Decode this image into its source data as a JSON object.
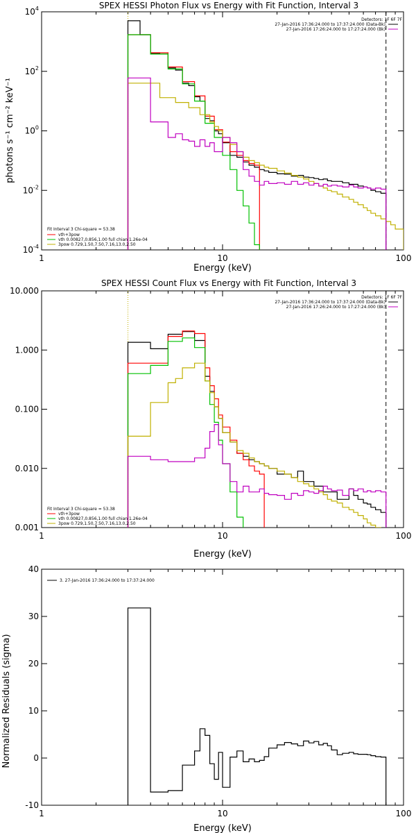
{
  "chart_data": [
    {
      "type": "line",
      "title": "SPEX HESSI Photon Flux vs Energy with Fit Function, Interval 3",
      "xlabel": "Energy (keV)",
      "ylabel": "photons s⁻¹ cm⁻² keV⁻¹",
      "xscale": "log",
      "yscale": "log",
      "xlim": [
        1,
        100
      ],
      "ylim": [
        0.0001,
        10000
      ],
      "xticks": [
        "1",
        "10",
        "100"
      ],
      "yticks": [
        {
          "base": "10",
          "exp": "-4",
          "v": 0.0001
        },
        {
          "base": "10",
          "exp": "-2",
          "v": 0.01
        },
        {
          "base": "10",
          "exp": "0",
          "v": 1
        },
        {
          "base": "10",
          "exp": "2",
          "v": 100
        },
        {
          "base": "10",
          "exp": "4",
          "v": 10000
        }
      ],
      "legend_right": {
        "header": "Detectors: 1F 6F 7F",
        "entries": [
          {
            "label": "27-Jan-2016 17:36:24.000 to 17:37:24.000 (Data-Bk)",
            "color": "#000000"
          },
          {
            "label": "27-Jan-2016 17:26:24.000 to 17:27:24.000 (Bk)",
            "color": "#c000c0"
          }
        ]
      },
      "legend_left": {
        "header": "Fit Interval 3   Chi-square = 53.38",
        "entries": [
          {
            "label": "vth+3pow",
            "color": "#ff0000"
          },
          {
            "label": "vth 0.00827,0.856,1.00  full chian 1.26e-04",
            "color": "#00c000"
          },
          {
            "label": "3pow 0.729,1.50,7.50,7.16,13.0,2.50",
            "color": "#c0b000"
          }
        ]
      },
      "vlines": [
        {
          "x": 3.0,
          "style": "dotted",
          "color": "#c0b000"
        },
        {
          "x": 80,
          "style": "dashed",
          "color": "#000000"
        }
      ],
      "series": [
        {
          "color": "#000000",
          "bins": [
            3.0,
            3.5,
            4.0,
            4.5,
            5.0,
            5.5,
            6.0,
            6.5,
            7.0,
            7.5,
            8.0,
            8.5,
            9.0,
            9.5,
            10,
            11,
            12,
            13,
            14,
            15,
            16,
            17,
            18,
            20,
            22,
            24,
            26,
            28,
            30,
            32,
            34,
            36,
            38,
            40,
            43,
            46,
            50,
            53,
            56,
            60,
            63,
            66,
            70,
            75,
            80
          ],
          "values": [
            5000,
            1700,
            400,
            380,
            130,
            110,
            40,
            33,
            14,
            10,
            2.6,
            2.2,
            1.0,
            0.8,
            0.4,
            0.15,
            0.13,
            0.09,
            0.07,
            0.06,
            0.05,
            0.045,
            0.04,
            0.036,
            0.035,
            0.03,
            0.032,
            0.028,
            0.027,
            0.025,
            0.023,
            0.024,
            0.021,
            0.02,
            0.02,
            0.018,
            0.016,
            0.016,
            0.014,
            0.013,
            0.012,
            0.01,
            0.009,
            0.008
          ]
        },
        {
          "color": "#ff0000",
          "bins": [
            3.0,
            3.5,
            4.0,
            4.5,
            5.0,
            5.5,
            6.0,
            6.5,
            7.0,
            7.5,
            8.0,
            8.5,
            9.0,
            9.5,
            10,
            11,
            12,
            13,
            14,
            15,
            16
          ],
          "values": [
            1700,
            1700,
            420,
            420,
            140,
            140,
            45,
            45,
            15,
            15,
            3.1,
            3.1,
            1.1,
            1.1,
            0.42,
            0.2,
            0.15,
            0.1,
            0.08,
            0.07
          ]
        },
        {
          "color": "#00c000",
          "bins": [
            3.0,
            3.5,
            4.0,
            4.5,
            5.0,
            5.5,
            6.0,
            6.5,
            7.0,
            7.5,
            8.0,
            8.5,
            9.0,
            9.5,
            10,
            11,
            12,
            13,
            14,
            15,
            16
          ],
          "values": [
            1700,
            1700,
            380,
            380,
            120,
            120,
            38,
            38,
            10,
            10,
            1.8,
            1.8,
            0.6,
            0.6,
            0.15,
            0.05,
            0.01,
            0.003,
            0.0008,
            0.00015
          ]
        },
        {
          "color": "#c0b000",
          "bins": [
            3.0,
            3.5,
            4.0,
            4.5,
            5.0,
            5.5,
            6.0,
            6.5,
            7.0,
            7.5,
            8.0,
            8.5,
            9.0,
            9.5,
            10,
            11,
            12,
            13,
            14,
            15,
            16,
            17,
            18,
            20,
            22,
            24,
            26,
            28,
            30,
            32,
            34,
            36,
            38,
            40,
            43,
            46,
            50,
            53,
            56,
            60,
            63,
            66,
            70,
            75,
            80,
            85,
            90,
            100
          ],
          "values": [
            40,
            40,
            40,
            13,
            13,
            9,
            9,
            6,
            6,
            3.5,
            3.5,
            2,
            1.4,
            1.0,
            0.6,
            0.35,
            0.2,
            0.13,
            0.1,
            0.085,
            0.07,
            0.06,
            0.055,
            0.045,
            0.038,
            0.032,
            0.028,
            0.024,
            0.02,
            0.017,
            0.014,
            0.012,
            0.01,
            0.009,
            0.0075,
            0.006,
            0.005,
            0.004,
            0.0033,
            0.0026,
            0.0021,
            0.0017,
            0.0014,
            0.0011,
            0.0009,
            0.0007,
            0.0005
          ]
        },
        {
          "color": "#c000c0",
          "bins": [
            3.0,
            3.5,
            4.0,
            4.5,
            5.0,
            5.5,
            6.0,
            6.5,
            7.0,
            7.5,
            8.0,
            8.5,
            9.0,
            9.5,
            10,
            11,
            12,
            13,
            14,
            15,
            16,
            17,
            18,
            20,
            22,
            24,
            26,
            28,
            30,
            32,
            34,
            36,
            38,
            40,
            43,
            46,
            50,
            53,
            56,
            60,
            63,
            66,
            70,
            75,
            80
          ],
          "values": [
            60,
            60,
            2,
            2,
            0.6,
            0.8,
            0.5,
            0.45,
            0.3,
            0.5,
            0.3,
            0.4,
            0.2,
            0.2,
            0.6,
            0.4,
            0.2,
            0.05,
            0.03,
            0.02,
            0.015,
            0.02,
            0.017,
            0.018,
            0.016,
            0.02,
            0.016,
            0.018,
            0.015,
            0.017,
            0.014,
            0.016,
            0.014,
            0.015,
            0.014,
            0.013,
            0.015,
            0.013,
            0.012,
            0.013,
            0.012,
            0.011,
            0.012,
            0.011
          ]
        }
      ]
    },
    {
      "type": "line",
      "title": "SPEX HESSI Count Flux vs Energy with Fit Function, Interval 3",
      "xlabel": "Energy (keV)",
      "ylabel": "",
      "xscale": "log",
      "yscale": "log",
      "xlim": [
        1,
        100
      ],
      "ylim": [
        0.001,
        10
      ],
      "xticks": [
        "1",
        "10",
        "100"
      ],
      "yticks": [
        {
          "base": "0.001",
          "v": 0.001
        },
        {
          "base": "0.010",
          "v": 0.01
        },
        {
          "base": "0.100",
          "v": 0.1
        },
        {
          "base": "1.000",
          "v": 1
        },
        {
          "base": "10.000",
          "v": 10
        }
      ],
      "legend_right": {
        "header": "Detectors: 1F 6F 7F",
        "entries": [
          {
            "label": "27-Jan-2016 17:36:24.000 to 17:37:24.000 (Data-Bk)",
            "color": "#000000"
          },
          {
            "label": "27-Jan-2016 17:26:24.000 to 17:27:24.000 (Bk)",
            "color": "#c000c0"
          }
        ]
      },
      "legend_left": {
        "header": "Fit Interval 3   Chi-square = 53.38",
        "entries": [
          {
            "label": "vth+3pow",
            "color": "#ff0000"
          },
          {
            "label": "vth 0.00827,0.856,1.00  full chian 1.26e-04",
            "color": "#00c000"
          },
          {
            "label": "3pow 0.729,1.50,7.50,7.16,13.0,2.50",
            "color": "#c0b000"
          }
        ]
      },
      "vlines": [
        {
          "x": 3.0,
          "style": "dotted",
          "color": "#c0b000"
        },
        {
          "x": 80,
          "style": "dashed",
          "color": "#000000"
        }
      ],
      "series": [
        {
          "color": "#000000",
          "bins": [
            3.0,
            4.0,
            5.0,
            6.0,
            7.0,
            8.0,
            8.5,
            9.0,
            9.5,
            10,
            11,
            12,
            13,
            14,
            15,
            16,
            17,
            18,
            20,
            22,
            24,
            26,
            28,
            30,
            32,
            34,
            36,
            38,
            40,
            43,
            46,
            50,
            53,
            56,
            60,
            63,
            66,
            70,
            75,
            80
          ],
          "values": [
            1.35,
            1.05,
            1.85,
            2.05,
            1.45,
            0.36,
            0.2,
            0.11,
            0.07,
            0.04,
            0.028,
            0.018,
            0.016,
            0.014,
            0.013,
            0.012,
            0.011,
            0.01,
            0.008,
            0.008,
            0.007,
            0.009,
            0.006,
            0.006,
            0.005,
            0.005,
            0.004,
            0.004,
            0.004,
            0.003,
            0.003,
            0.0045,
            0.0035,
            0.003,
            0.0026,
            0.0025,
            0.0022,
            0.002,
            0.0018
          ]
        },
        {
          "color": "#ff0000",
          "bins": [
            3.0,
            4.0,
            5.0,
            6.0,
            7.0,
            8.0,
            8.5,
            9.0,
            9.5,
            10,
            11,
            12,
            13,
            14,
            15,
            16,
            17
          ],
          "values": [
            0.6,
            0.6,
            1.7,
            2.1,
            1.9,
            0.5,
            0.25,
            0.15,
            0.08,
            0.05,
            0.03,
            0.018,
            0.014,
            0.011,
            0.009,
            0.008
          ]
        },
        {
          "color": "#00c000",
          "bins": [
            3.0,
            4.0,
            5.0,
            6.0,
            7.0,
            8.0,
            8.5,
            9.0,
            9.5,
            10,
            11,
            12,
            13,
            14
          ],
          "values": [
            0.4,
            0.55,
            1.4,
            1.6,
            1.1,
            0.3,
            0.12,
            0.06,
            0.03,
            0.012,
            0.004,
            0.0015,
            0.0009
          ]
        },
        {
          "color": "#c0b000",
          "bins": [
            3.0,
            4.0,
            5.0,
            5.5,
            6.0,
            7.0,
            8.0,
            8.5,
            9.0,
            9.5,
            10,
            11,
            12,
            13,
            14,
            15,
            16,
            17,
            18,
            20,
            22,
            24,
            26,
            28,
            30,
            32,
            34,
            36,
            38,
            40,
            43,
            46,
            50,
            53,
            56,
            60,
            63,
            66,
            70,
            75,
            80
          ],
          "values": [
            0.035,
            0.13,
            0.28,
            0.33,
            0.5,
            0.6,
            0.3,
            0.19,
            0.11,
            0.07,
            0.04,
            0.028,
            0.02,
            0.018,
            0.015,
            0.013,
            0.012,
            0.011,
            0.01,
            0.009,
            0.008,
            0.007,
            0.006,
            0.0055,
            0.005,
            0.0045,
            0.004,
            0.0036,
            0.003,
            0.0028,
            0.0026,
            0.0022,
            0.002,
            0.0018,
            0.0016,
            0.0014,
            0.0012,
            0.0011,
            0.001,
            0.0009
          ]
        },
        {
          "color": "#c000c0",
          "bins": [
            3.0,
            4.0,
            5.0,
            6.0,
            7.0,
            8.0,
            8.5,
            9.0,
            9.5,
            10,
            11,
            12,
            13,
            14,
            15,
            16,
            17,
            18,
            20,
            22,
            24,
            26,
            28,
            30,
            32,
            34,
            36,
            38,
            40,
            43,
            46,
            50,
            53,
            56,
            60,
            63,
            66,
            70,
            75,
            80
          ],
          "values": [
            0.016,
            0.014,
            0.013,
            0.013,
            0.015,
            0.022,
            0.042,
            0.055,
            0.025,
            0.012,
            0.006,
            0.004,
            0.005,
            0.004,
            0.004,
            0.0045,
            0.0038,
            0.0036,
            0.0035,
            0.003,
            0.0038,
            0.0035,
            0.0042,
            0.004,
            0.0038,
            0.0042,
            0.005,
            0.0045,
            0.0042,
            0.0043,
            0.0035,
            0.0045,
            0.0042,
            0.0045,
            0.004,
            0.0042,
            0.004,
            0.0042,
            0.004
          ]
        }
      ]
    },
    {
      "type": "line",
      "title": "",
      "xlabel": "Energy (keV)",
      "ylabel": "Normalized Residuals (sigma)",
      "xscale": "log",
      "yscale": "linear",
      "xlim": [
        1,
        100
      ],
      "ylim": [
        -10,
        40
      ],
      "xticks": [
        "1",
        "10",
        "100"
      ],
      "yticks": [
        {
          "base": "-10",
          "v": -10
        },
        {
          "base": "0",
          "v": 0
        },
        {
          "base": "10",
          "v": 10
        },
        {
          "base": "20",
          "v": 20
        },
        {
          "base": "30",
          "v": 30
        },
        {
          "base": "40",
          "v": 40
        }
      ],
      "legend_right": null,
      "legend_left_top": {
        "label": "3. 27-Jan-2016 17:36:24.000 to 17:37:24.000",
        "color": "#000000"
      },
      "vlines": [],
      "series": [
        {
          "color": "#000000",
          "bins": [
            3.0,
            4.0,
            5.0,
            6.0,
            7.0,
            7.5,
            8.0,
            8.5,
            9.0,
            9.5,
            10,
            11,
            12,
            13,
            14,
            15,
            16,
            17,
            18,
            20,
            22,
            24,
            26,
            28,
            30,
            32,
            34,
            36,
            38,
            40,
            43,
            46,
            50,
            53,
            56,
            60,
            63,
            66,
            70,
            75,
            80
          ],
          "values": [
            31.8,
            -7.2,
            -6.9,
            -1.5,
            1.5,
            6.2,
            4.8,
            -1.2,
            -4.5,
            1.2,
            -6.2,
            0.2,
            1.5,
            -0.8,
            -0.2,
            -0.8,
            -0.5,
            0.3,
            2.1,
            2.8,
            3.3,
            3.0,
            2.6,
            3.6,
            3.2,
            3.5,
            2.8,
            3.1,
            2.6,
            1.7,
            0.7,
            1.0,
            1.2,
            0.9,
            0.8,
            0.8,
            0.7,
            0.5,
            0.3,
            0.2
          ]
        }
      ]
    }
  ]
}
